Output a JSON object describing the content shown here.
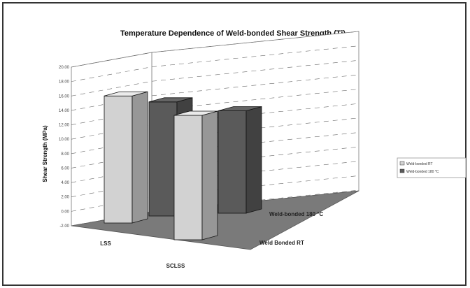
{
  "chart_data": {
    "type": "bar",
    "title": "Temperature Dependence of Weld-bonded Shear Strength (Ti)",
    "ylabel": "Shear Strength (MPa)",
    "categories": [
      "LSS",
      "SCLSS"
    ],
    "series": [
      {
        "name": "Weld-bonded RT",
        "values": [
          17.6,
          17.2
        ],
        "color": "#d2d2d2"
      },
      {
        "name": "Weld-bonded 180 °C",
        "values": [
          15.6,
          13.8
        ],
        "color": "#5a5a5a"
      }
    ],
    "ylim": [
      -2,
      20
    ],
    "yticks": [
      "20.00",
      "18.00",
      "16.00",
      "14.00",
      "12.00",
      "10.00",
      "8.00",
      "6.00",
      "4.00",
      "2.00",
      "0.00",
      "-2.00"
    ],
    "series_axis_labels": [
      "Weld-bonded 180 °C",
      "Weld Bonded RT"
    ],
    "legend": [
      "Weld-bonded RT",
      "Weld-bonded 180 °C"
    ],
    "legend_position": "right",
    "grid": true
  }
}
